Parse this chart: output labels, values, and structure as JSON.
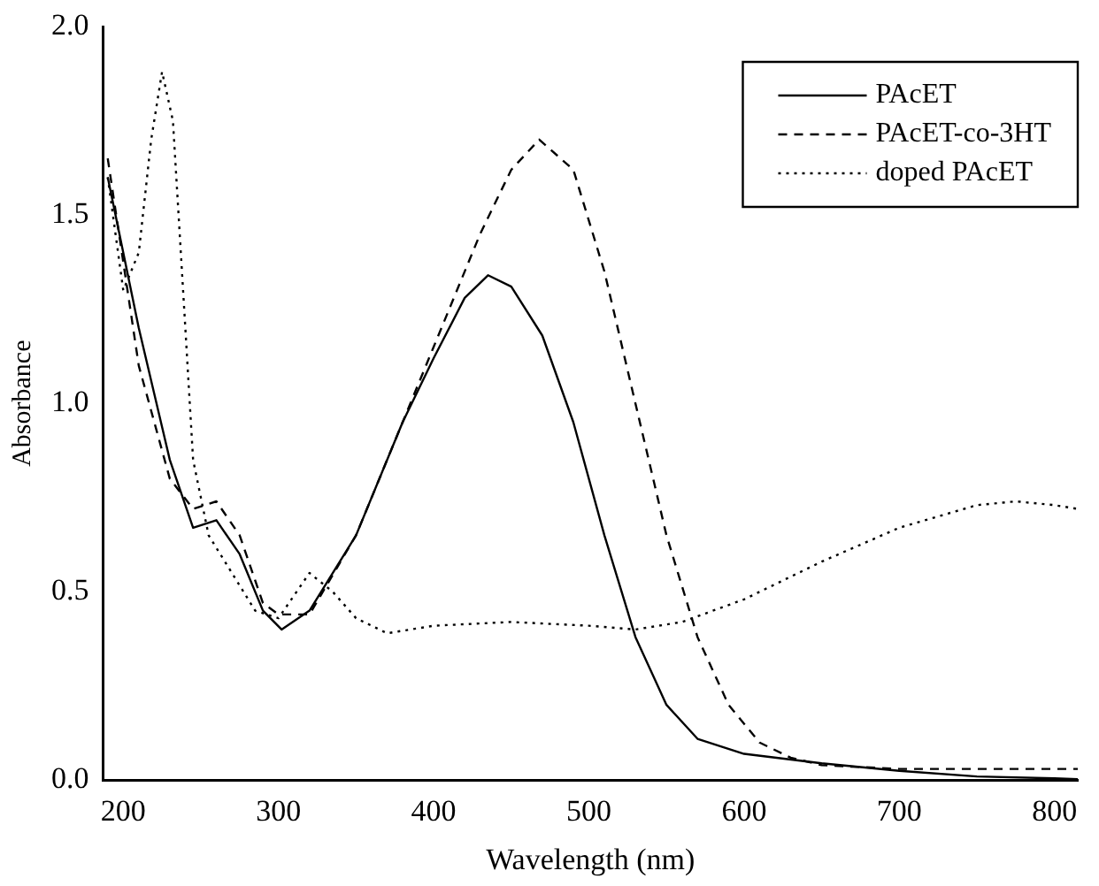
{
  "chart_data": {
    "type": "line",
    "xlabel": "Wavelength (nm)",
    "ylabel": "Absorbance",
    "xlim": [
      187,
      815
    ],
    "ylim": [
      0,
      2
    ],
    "xticks": [
      200,
      300,
      400,
      500,
      600,
      700,
      800
    ],
    "yticks": [
      {
        "value": 0,
        "label": "0.0"
      },
      {
        "value": 0.5,
        "label": "0.5"
      },
      {
        "value": 1,
        "label": "1.0"
      },
      {
        "value": 1.5,
        "label": "1.5"
      },
      {
        "value": 2,
        "label": "2.0"
      }
    ],
    "grid": false,
    "legend": "top right",
    "marker": "none",
    "series": [
      {
        "name": "PAcET",
        "color": "#000000",
        "line_style": "solid",
        "x": [
          190,
          210,
          230,
          245,
          260,
          275,
          290,
          302,
          320,
          350,
          380,
          400,
          420,
          435,
          450,
          470,
          490,
          510,
          530,
          550,
          570,
          600,
          650,
          700,
          750,
          800,
          815
        ],
        "values": [
          1.6,
          1.2,
          0.85,
          0.67,
          0.69,
          0.6,
          0.45,
          0.4,
          0.45,
          0.65,
          0.95,
          1.12,
          1.28,
          1.34,
          1.31,
          1.18,
          0.95,
          0.65,
          0.38,
          0.2,
          0.11,
          0.07,
          0.045,
          0.025,
          0.01,
          0.005,
          0.003
        ]
      },
      {
        "name": "PAcET-co-3HT",
        "color": "#000000",
        "line_style": "dashed",
        "x": [
          190,
          210,
          230,
          245,
          260,
          275,
          290,
          300,
          320,
          350,
          380,
          400,
          430,
          450,
          468,
          490,
          510,
          530,
          550,
          570,
          590,
          610,
          630,
          650,
          700,
          800,
          815
        ],
        "values": [
          1.65,
          1.1,
          0.8,
          0.72,
          0.74,
          0.65,
          0.47,
          0.44,
          0.44,
          0.65,
          0.95,
          1.15,
          1.45,
          1.62,
          1.7,
          1.62,
          1.35,
          1.0,
          0.65,
          0.38,
          0.2,
          0.1,
          0.06,
          0.04,
          0.03,
          0.03,
          0.03
        ]
      },
      {
        "name": "doped PAcET",
        "color": "#000000",
        "line_style": "dotted",
        "x": [
          190,
          200,
          210,
          218,
          225,
          232,
          240,
          245,
          255,
          270,
          285,
          300,
          320,
          335,
          350,
          370,
          400,
          450,
          500,
          530,
          560,
          600,
          650,
          700,
          750,
          775,
          800,
          815
        ],
        "values": [
          1.6,
          1.3,
          1.4,
          1.7,
          1.88,
          1.75,
          1.2,
          0.85,
          0.65,
          0.55,
          0.45,
          0.43,
          0.55,
          0.5,
          0.43,
          0.39,
          0.41,
          0.42,
          0.41,
          0.4,
          0.42,
          0.48,
          0.58,
          0.67,
          0.73,
          0.74,
          0.73,
          0.72
        ]
      }
    ]
  }
}
